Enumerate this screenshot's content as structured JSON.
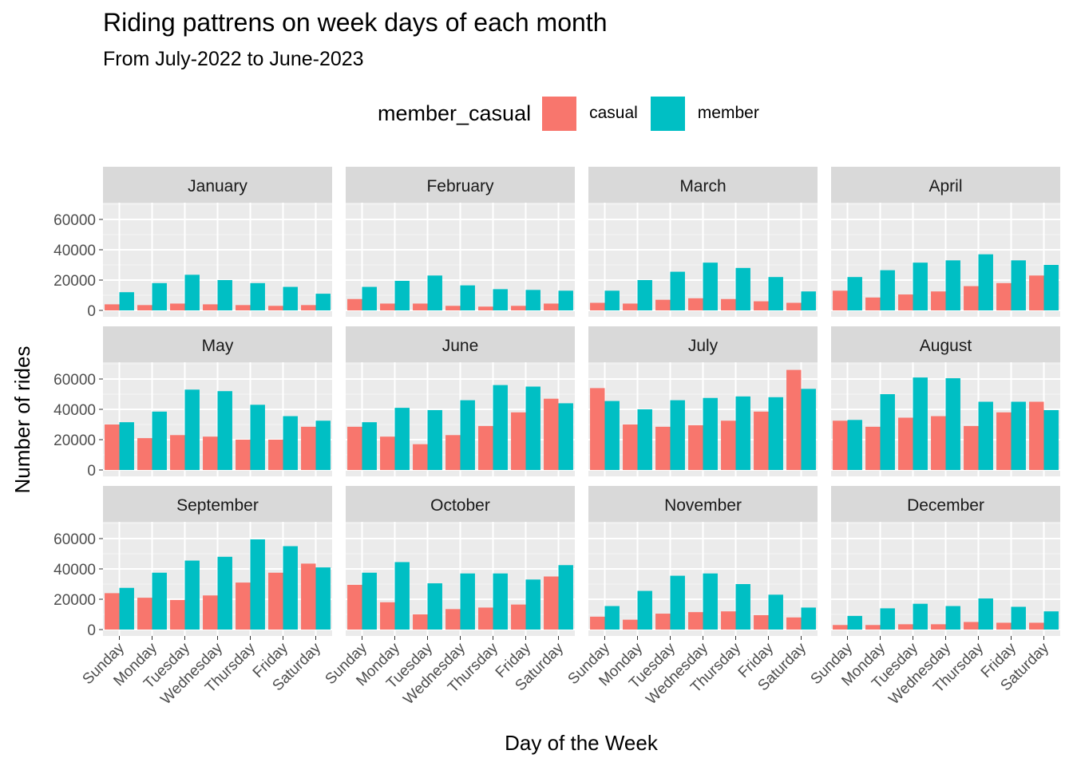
{
  "chart_data": {
    "type": "bar",
    "title": "Riding pattrens on week days of each month",
    "subtitle": "From July-2022 to June-2023",
    "xlabel": "Day of the Week",
    "ylabel": "Number of rides",
    "legend": {
      "title": "member_casual",
      "position": "top"
    },
    "ylim": [
      0,
      70000
    ],
    "yticks": [
      0,
      20000,
      40000,
      60000
    ],
    "ytick_labels": [
      "0",
      "20000",
      "40000",
      "60000"
    ],
    "categories": [
      "Sunday",
      "Monday",
      "Tuesday",
      "Wednesday",
      "Thursday",
      "Friday",
      "Saturday"
    ],
    "series_names": [
      "casual",
      "member"
    ],
    "colors": {
      "casual": "#F8766D",
      "member": "#00BFC4"
    },
    "facets": [
      {
        "month": "January",
        "casual": [
          4000,
          3500,
          4500,
          4000,
          3500,
          3000,
          3500
        ],
        "member": [
          12000,
          18000,
          23500,
          20000,
          18000,
          15500,
          11000
        ]
      },
      {
        "month": "February",
        "casual": [
          7500,
          4500,
          4500,
          3000,
          2500,
          3000,
          4500
        ],
        "member": [
          15500,
          19500,
          23000,
          16500,
          14000,
          13500,
          13000
        ]
      },
      {
        "month": "March",
        "casual": [
          5000,
          4500,
          7000,
          8000,
          7500,
          6000,
          5000
        ],
        "member": [
          13000,
          20000,
          25500,
          31500,
          28000,
          22000,
          12500
        ]
      },
      {
        "month": "April",
        "casual": [
          13000,
          8500,
          10500,
          12500,
          16000,
          18000,
          23000
        ],
        "member": [
          22000,
          26500,
          31500,
          33000,
          37000,
          33000,
          30000
        ]
      },
      {
        "month": "May",
        "casual": [
          30000,
          21000,
          23000,
          22000,
          20000,
          20000,
          28500
        ],
        "member": [
          31500,
          38500,
          53000,
          52000,
          43000,
          35500,
          32500
        ]
      },
      {
        "month": "June",
        "casual": [
          28500,
          22000,
          17000,
          23000,
          29000,
          38000,
          47000
        ],
        "member": [
          31500,
          41000,
          39500,
          46000,
          56000,
          55000,
          44000
        ]
      },
      {
        "month": "July",
        "casual": [
          54000,
          30000,
          28500,
          29500,
          32500,
          38500,
          66000
        ],
        "member": [
          45500,
          40000,
          46000,
          47500,
          48500,
          48000,
          53500
        ]
      },
      {
        "month": "August",
        "casual": [
          32500,
          28500,
          34500,
          35500,
          29000,
          38000,
          45000
        ],
        "member": [
          33000,
          50000,
          61000,
          60500,
          45000,
          45000,
          39500
        ]
      },
      {
        "month": "September",
        "casual": [
          24000,
          21000,
          19500,
          22500,
          31000,
          37500,
          43500
        ],
        "member": [
          27500,
          37500,
          45500,
          48000,
          59500,
          55000,
          41000
        ]
      },
      {
        "month": "October",
        "casual": [
          29500,
          18000,
          10000,
          13500,
          14500,
          16500,
          35000
        ],
        "member": [
          37500,
          44500,
          30500,
          37000,
          37000,
          33000,
          42500
        ]
      },
      {
        "month": "November",
        "casual": [
          8500,
          6500,
          10500,
          11500,
          12000,
          9500,
          8000
        ],
        "member": [
          15500,
          25500,
          35500,
          37000,
          30000,
          23000,
          14500
        ]
      },
      {
        "month": "December",
        "casual": [
          3000,
          3000,
          3500,
          3500,
          5000,
          4500,
          4500
        ],
        "member": [
          9000,
          14000,
          17000,
          15500,
          20500,
          15000,
          12000
        ]
      }
    ]
  }
}
